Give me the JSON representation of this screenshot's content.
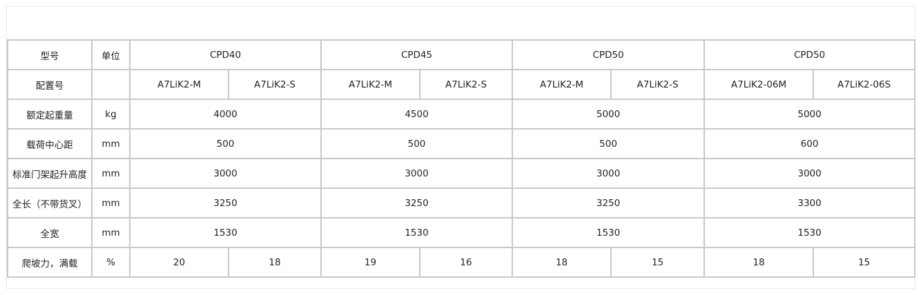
{
  "caption": "",
  "header": {
    "label": "型号",
    "unit": "单位",
    "models": [
      "CPD40",
      "CPD45",
      "CPD50",
      "CPD50"
    ]
  },
  "config": {
    "label": "配置号",
    "unit": "",
    "values": [
      "A7LiK2-M",
      "A7LiK2-S",
      "A7LiK2-M",
      "A7LiK2-S",
      "A7LiK2-M",
      "A7LiK2-S",
      "A7LiK2-06M",
      "A7LiK2-06S"
    ]
  },
  "rows": [
    {
      "label": "额定起重量",
      "unit": "kg",
      "values": [
        "4000",
        "4500",
        "5000",
        "5000"
      ]
    },
    {
      "label": "载荷中心距",
      "unit": "mm",
      "values": [
        "500",
        "500",
        "500",
        "600"
      ]
    },
    {
      "label": "标准门架起升高度",
      "unit": "mm",
      "values": [
        "3000",
        "3000",
        "3000",
        "3000"
      ]
    },
    {
      "label": "全长（不带货叉）",
      "unit": "mm",
      "values": [
        "3250",
        "3250",
        "3250",
        "3300"
      ]
    },
    {
      "label": "全宽",
      "unit": "mm",
      "values": [
        "1530",
        "1530",
        "1530",
        "1530"
      ]
    }
  ],
  "gradeability": {
    "label": "爬坡力，满载",
    "unit": "%",
    "values": [
      "20",
      "18",
      "19",
      "16",
      "18",
      "15",
      "18",
      "15"
    ]
  }
}
